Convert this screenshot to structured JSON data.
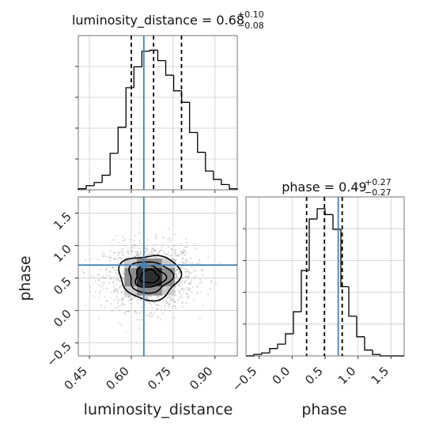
{
  "chart_data": [
    {
      "type": "histogram",
      "panel": "top-left",
      "variable": "luminosity_distance",
      "title": {
        "main": "luminosity_distance = 0.68",
        "sup": "+0.10",
        "sub": "−0.08"
      },
      "xlim": [
        0.41,
        0.98
      ],
      "bin_edges": [
        0.41,
        0.4385,
        0.467,
        0.4955,
        0.524,
        0.5525,
        0.581,
        0.6095,
        0.638,
        0.6665,
        0.695,
        0.7235,
        0.752,
        0.7805,
        0.809,
        0.8375,
        0.866,
        0.8945,
        0.923,
        0.9515,
        0.98
      ],
      "counts": [
        1,
        4,
        7,
        14,
        35,
        60,
        98,
        118,
        133,
        134,
        124,
        110,
        95,
        84,
        55,
        36,
        18,
        10,
        5,
        1
      ],
      "ymax": 148,
      "quantiles": [
        0.6,
        0.68,
        0.78
      ],
      "truth": 0.645,
      "grid": true
    },
    {
      "type": "histogram",
      "panel": "bottom-right",
      "variable": "phase",
      "title": {
        "main": "phase = 0.49",
        "sup": "+0.27",
        "sub": "−0.27"
      },
      "xlim": [
        -0.7,
        1.7
      ],
      "xticks": [
        "−0.5",
        "0.0",
        "0.5",
        "1.0",
        "1.5"
      ],
      "xtick_values": [
        -0.5,
        0.0,
        0.5,
        1.0,
        1.5
      ],
      "bin_edges": [
        -0.7,
        -0.58,
        -0.46,
        -0.34,
        -0.22,
        -0.1,
        0.02,
        0.14,
        0.26,
        0.38,
        0.5,
        0.62,
        0.74,
        0.86,
        0.98,
        1.1,
        1.22,
        1.34,
        1.46,
        1.58,
        1.7
      ],
      "counts": [
        0,
        1,
        2,
        5,
        8,
        15,
        30,
        58,
        93,
        100,
        96,
        86,
        47,
        27,
        13,
        4,
        1,
        0,
        0,
        0
      ],
      "ymax": 108,
      "quantiles": [
        0.22,
        0.49,
        0.76
      ],
      "truth": 0.7,
      "xlabel": "phase",
      "grid": true
    },
    {
      "type": "2d-density",
      "panel": "bottom-left",
      "xvar": "luminosity_distance",
      "yvar": "phase",
      "xlim": [
        0.41,
        0.98
      ],
      "ylim": [
        -0.7,
        1.75
      ],
      "xticks": [
        "0.45",
        "0.60",
        "0.75",
        "0.90"
      ],
      "xtick_values": [
        0.45,
        0.6,
        0.75,
        0.9
      ],
      "yticks": [
        "−0.5",
        "0.0",
        "0.5",
        "1.0",
        "1.5"
      ],
      "ytick_values": [
        -0.5,
        0.0,
        0.5,
        1.0,
        1.5
      ],
      "center": [
        0.665,
        0.52
      ],
      "spread": [
        0.07,
        0.22
      ],
      "contour_levels": [
        0.3,
        0.55,
        0.75,
        0.9
      ],
      "truth": [
        0.645,
        0.7
      ],
      "xlabel": "luminosity_distance",
      "ylabel": "phase",
      "grid": true
    }
  ],
  "colors": {
    "truth": "#4682b4",
    "line": "#000000",
    "grid": "#cccccc",
    "points": "#9a9a9a"
  }
}
